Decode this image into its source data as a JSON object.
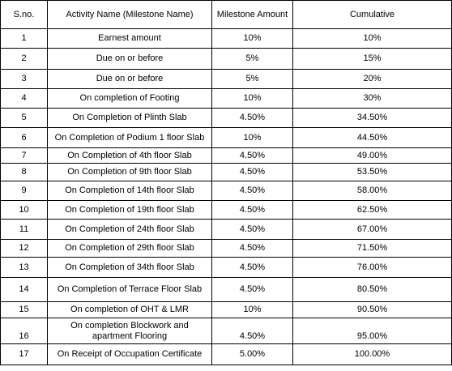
{
  "table": {
    "headers": {
      "sno": "S.no.",
      "activity": "Activity Name (Milestone Name)",
      "amount": "Milestone Amount",
      "cumulative": "Cumulative"
    },
    "rows": [
      {
        "sno": "1",
        "activity": "Earnest amount",
        "amount": "10%",
        "cumulative": "10%"
      },
      {
        "sno": "2",
        "activity": "Due on or before",
        "amount": "5%",
        "cumulative": "15%"
      },
      {
        "sno": "3",
        "activity": "Due on or before",
        "amount": "5%",
        "cumulative": "20%"
      },
      {
        "sno": "4",
        "activity": "On completion of Footing",
        "amount": "10%",
        "cumulative": "30%"
      },
      {
        "sno": "5",
        "activity": "On Completion of Plinth Slab",
        "amount": "4.50%",
        "cumulative": "34.50%"
      },
      {
        "sno": "6",
        "activity": "On Completion of Podium 1 floor Slab",
        "amount": "10%",
        "cumulative": "44.50%"
      },
      {
        "sno": "7",
        "activity": "On Completion of 4th floor Slab",
        "amount": "4.50%",
        "cumulative": "49.00%"
      },
      {
        "sno": "8",
        "activity": "On Completion of 9th floor Slab",
        "amount": "4.50%",
        "cumulative": "53.50%"
      },
      {
        "sno": "9",
        "activity": "On Completion of 14th floor Slab",
        "amount": "4.50%",
        "cumulative": "58.00%"
      },
      {
        "sno": "10",
        "activity": "On Completion of 19th floor Slab",
        "amount": "4.50%",
        "cumulative": "62.50%"
      },
      {
        "sno": "11",
        "activity": "On Completion of 24th floor Slab",
        "amount": "4.50%",
        "cumulative": "67.00%"
      },
      {
        "sno": "12",
        "activity": "On Completion of 29th floor Slab",
        "amount": "4.50%",
        "cumulative": "71.50%"
      },
      {
        "sno": "13",
        "activity": "On Completion of 34th floor Slab",
        "amount": "4.50%",
        "cumulative": "76.00%"
      },
      {
        "sno": "14",
        "activity": "On Completion of Terrace Floor Slab",
        "amount": "4.50%",
        "cumulative": "80.50%"
      },
      {
        "sno": "15",
        "activity": "On completion of OHT & LMR",
        "amount": "10%",
        "cumulative": "90.50%"
      },
      {
        "sno": "16",
        "activity": "On completion Blockwork and apartment Flooring",
        "amount": "4.50%",
        "cumulative": "95.00%"
      },
      {
        "sno": "17",
        "activity": "On Receipt of Occupation Certificate",
        "amount": "5.00%",
        "cumulative": "100.00%"
      }
    ]
  }
}
